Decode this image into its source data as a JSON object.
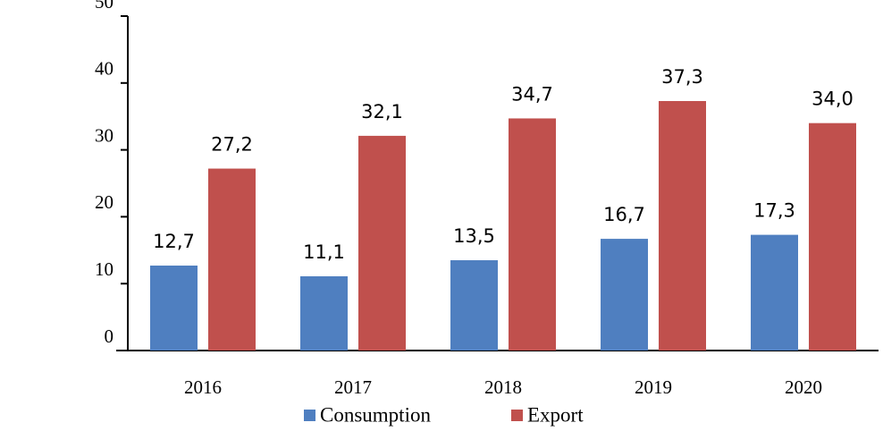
{
  "chart_data": {
    "type": "bar",
    "categories": [
      "2016",
      "2017",
      "2018",
      "2019",
      "2020"
    ],
    "series": [
      {
        "name": "Consumption",
        "color": "#4f7fc0",
        "values": [
          12.7,
          11.1,
          13.5,
          16.7,
          17.3
        ],
        "value_labels": [
          "12,7",
          "11,1",
          "13,5",
          "16,7",
          "17,3"
        ]
      },
      {
        "name": "Export",
        "color": "#c0504d",
        "values": [
          27.2,
          32.1,
          34.7,
          37.3,
          34.0
        ],
        "value_labels": [
          "27,2",
          "32,1",
          "34,7",
          "37,3",
          "34,0"
        ]
      }
    ],
    "ylim": [
      0,
      50
    ],
    "yticks": [
      0,
      10,
      20,
      30,
      40,
      50
    ],
    "grid": false,
    "legend": "bottom"
  }
}
